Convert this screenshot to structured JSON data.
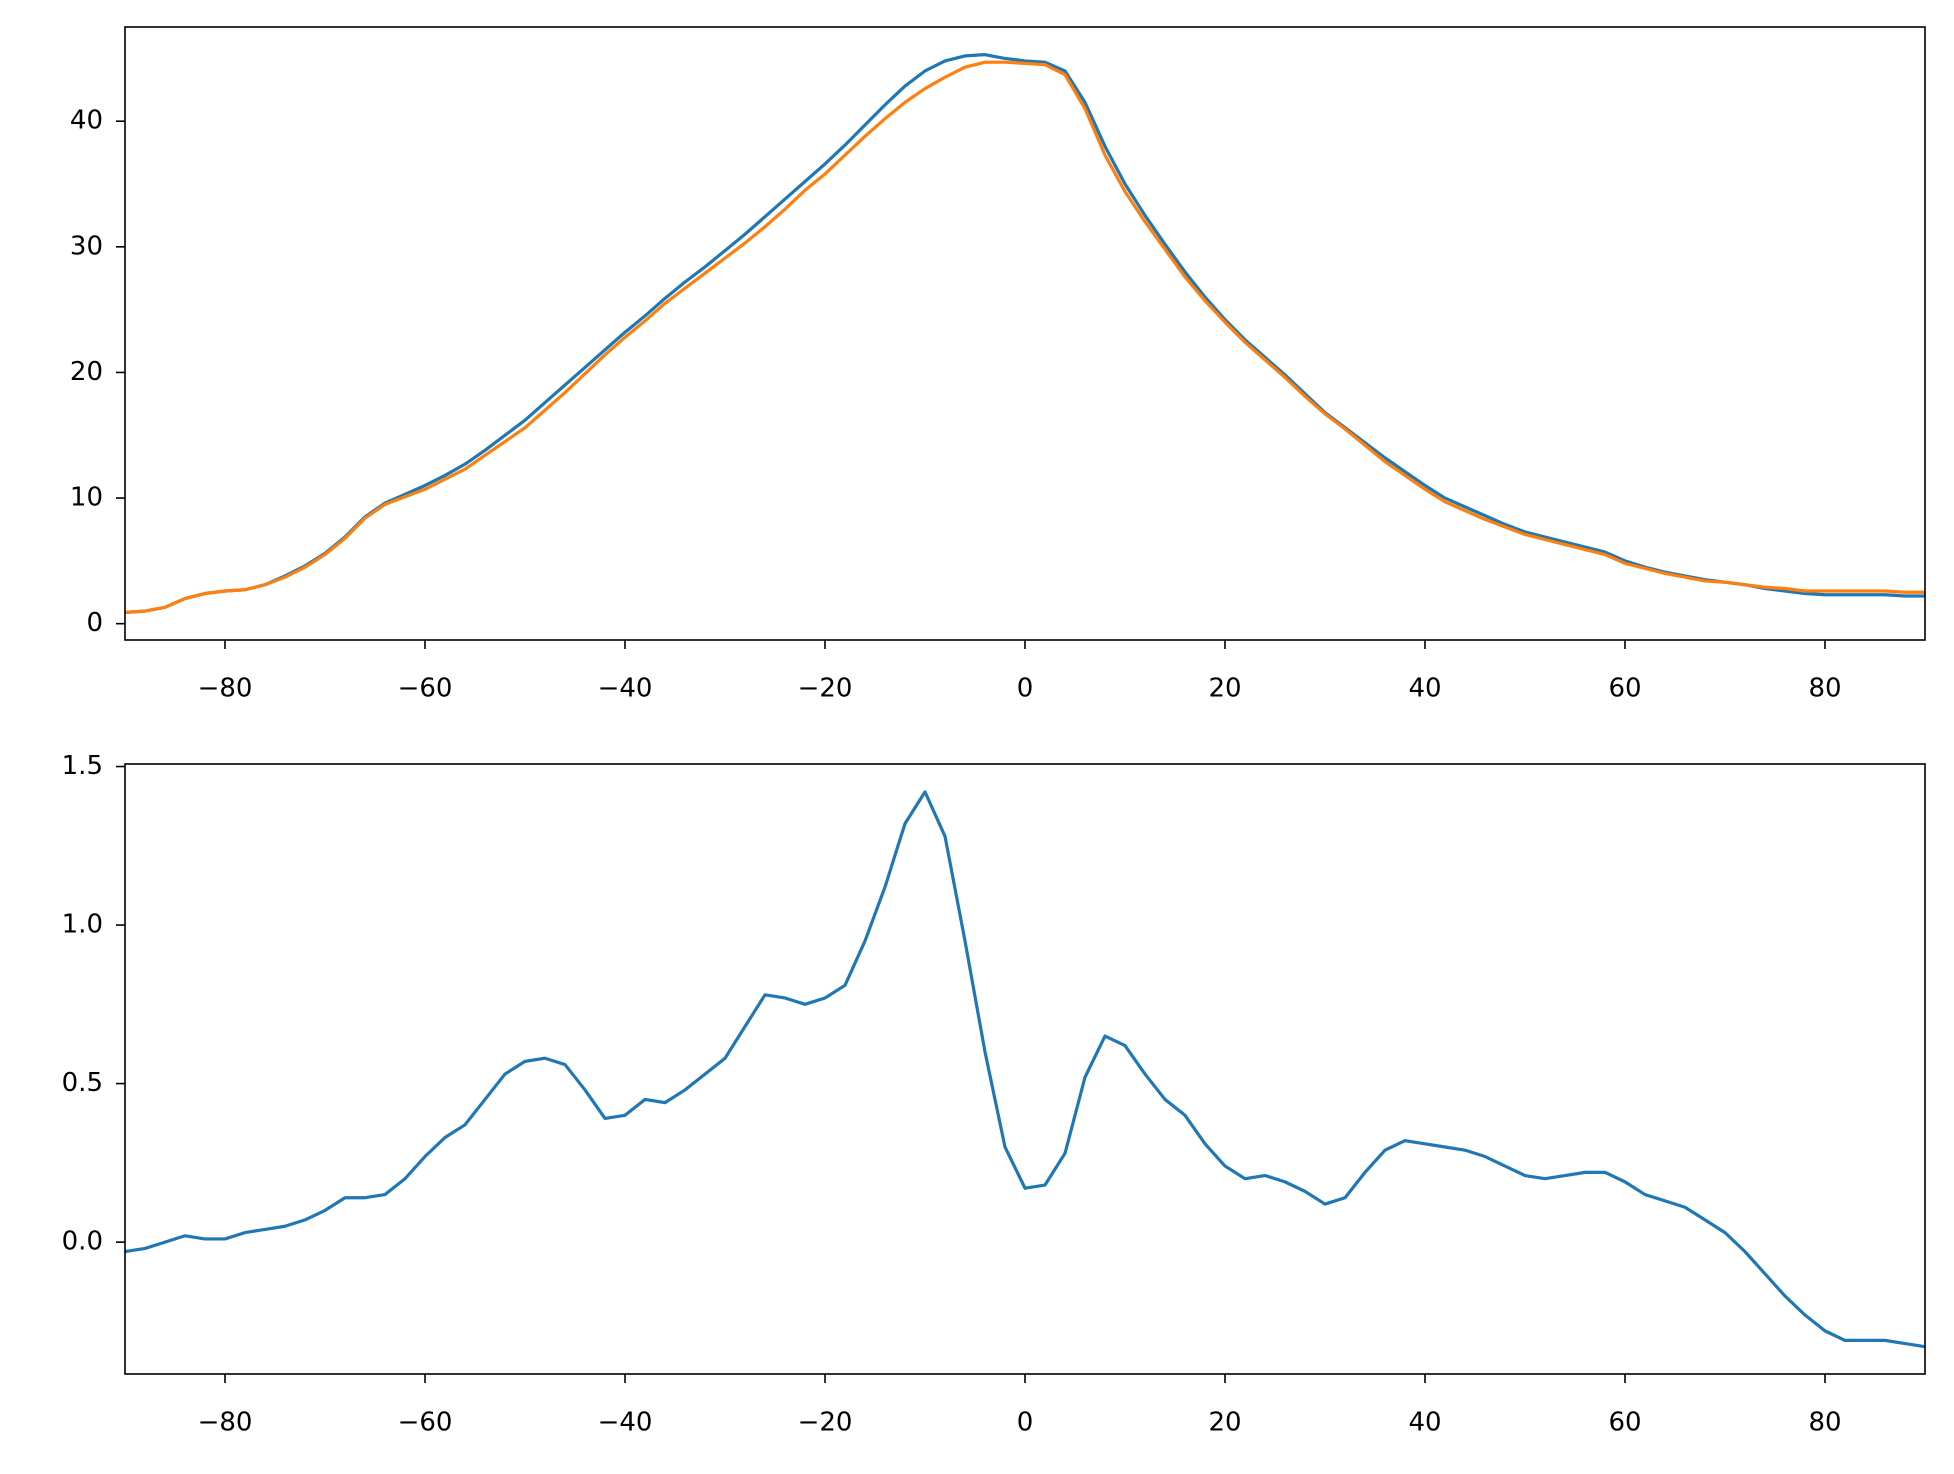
{
  "chart_data": [
    {
      "type": "line",
      "x": [
        -90,
        -88,
        -86,
        -84,
        -82,
        -80,
        -78,
        -76,
        -74,
        -72,
        -70,
        -68,
        -66,
        -64,
        -62,
        -60,
        -58,
        -56,
        -54,
        -52,
        -50,
        -48,
        -46,
        -44,
        -42,
        -40,
        -38,
        -36,
        -34,
        -32,
        -30,
        -28,
        -26,
        -24,
        -22,
        -20,
        -18,
        -16,
        -14,
        -12,
        -10,
        -8,
        -6,
        -4,
        -2,
        0,
        2,
        4,
        6,
        8,
        10,
        12,
        14,
        16,
        18,
        20,
        22,
        24,
        26,
        28,
        30,
        32,
        34,
        36,
        38,
        40,
        42,
        44,
        46,
        48,
        50,
        52,
        54,
        56,
        58,
        60,
        62,
        64,
        66,
        68,
        70,
        72,
        74,
        76,
        78,
        80,
        82,
        84,
        86,
        88,
        90
      ],
      "series": [
        {
          "color": "#1f77b4",
          "values": [
            0.9,
            1.0,
            1.3,
            2.0,
            2.4,
            2.6,
            2.7,
            3.1,
            3.8,
            4.6,
            5.6,
            6.9,
            8.5,
            9.6,
            10.3,
            11.0,
            11.8,
            12.7,
            13.8,
            15.0,
            16.2,
            17.6,
            19.0,
            20.4,
            21.8,
            23.2,
            24.5,
            25.9,
            27.2,
            28.4,
            29.7,
            31.0,
            32.4,
            33.8,
            35.2,
            36.6,
            38.1,
            39.7,
            41.3,
            42.8,
            44.0,
            44.8,
            45.2,
            45.3,
            45.0,
            44.8,
            44.7,
            44.0,
            41.5,
            38.0,
            35.0,
            32.5,
            30.2,
            28.0,
            26.0,
            24.2,
            22.6,
            21.2,
            19.8,
            18.3,
            16.8,
            15.6,
            14.4,
            13.2,
            12.1,
            11.0,
            10.0,
            9.3,
            8.6,
            7.9,
            7.3,
            6.9,
            6.5,
            6.1,
            5.7,
            5.0,
            4.5,
            4.1,
            3.8,
            3.5,
            3.3,
            3.1,
            2.8,
            2.6,
            2.4,
            2.3,
            2.3,
            2.3,
            2.3,
            2.2,
            2.2
          ]
        },
        {
          "color": "#ff7f0e",
          "values": [
            0.9,
            1.0,
            1.3,
            2.0,
            2.4,
            2.6,
            2.7,
            3.1,
            3.7,
            4.5,
            5.5,
            6.8,
            8.4,
            9.5,
            10.1,
            10.7,
            11.5,
            12.3,
            13.4,
            14.5,
            15.6,
            17.0,
            18.4,
            19.9,
            21.4,
            22.8,
            24.1,
            25.5,
            26.7,
            27.9,
            29.1,
            30.3,
            31.6,
            33.0,
            34.5,
            35.8,
            37.3,
            38.8,
            40.2,
            41.5,
            42.6,
            43.5,
            44.3,
            44.7,
            44.7,
            44.6,
            44.5,
            43.7,
            41.0,
            37.3,
            34.4,
            32.0,
            29.8,
            27.6,
            25.7,
            24.0,
            22.4,
            21.0,
            19.6,
            18.1,
            16.7,
            15.5,
            14.2,
            12.9,
            11.8,
            10.7,
            9.7,
            9.0,
            8.3,
            7.7,
            7.1,
            6.7,
            6.3,
            5.9,
            5.5,
            4.8,
            4.4,
            4.0,
            3.7,
            3.4,
            3.3,
            3.1,
            2.9,
            2.8,
            2.6,
            2.6,
            2.6,
            2.6,
            2.6,
            2.5,
            2.5
          ]
        }
      ],
      "xlim": [
        -90,
        90
      ],
      "ylim": [
        -1.3,
        47.5
      ],
      "xticks": [
        {
          "value": -80,
          "label": "−80"
        },
        {
          "value": -60,
          "label": "−60"
        },
        {
          "value": -40,
          "label": "−40"
        },
        {
          "value": -20,
          "label": "−20"
        },
        0,
        20,
        40,
        60,
        80
      ],
      "yticks": [
        0,
        10,
        20,
        30,
        40
      ]
    },
    {
      "type": "line",
      "x": [
        -90,
        -88,
        -86,
        -84,
        -82,
        -80,
        -78,
        -76,
        -74,
        -72,
        -70,
        -68,
        -66,
        -64,
        -62,
        -60,
        -58,
        -56,
        -54,
        -52,
        -50,
        -48,
        -46,
        -44,
        -42,
        -40,
        -38,
        -36,
        -34,
        -32,
        -30,
        -28,
        -26,
        -24,
        -22,
        -20,
        -18,
        -16,
        -14,
        -12,
        -10,
        -8,
        -6,
        -4,
        -2,
        0,
        2,
        4,
        6,
        8,
        10,
        12,
        14,
        16,
        18,
        20,
        22,
        24,
        26,
        28,
        30,
        32,
        34,
        36,
        38,
        40,
        42,
        44,
        46,
        48,
        50,
        52,
        54,
        56,
        58,
        60,
        62,
        64,
        66,
        68,
        70,
        72,
        74,
        76,
        78,
        80,
        82,
        84,
        86,
        88,
        90
      ],
      "series": [
        {
          "color": "#1f77b4",
          "values": [
            -0.03,
            -0.02,
            0.0,
            0.02,
            0.01,
            0.01,
            0.03,
            0.04,
            0.05,
            0.07,
            0.1,
            0.14,
            0.14,
            0.15,
            0.2,
            0.27,
            0.33,
            0.37,
            0.45,
            0.53,
            0.57,
            0.58,
            0.56,
            0.48,
            0.39,
            0.4,
            0.45,
            0.44,
            0.48,
            0.53,
            0.58,
            0.68,
            0.78,
            0.77,
            0.75,
            0.77,
            0.81,
            0.95,
            1.12,
            1.32,
            1.42,
            1.28,
            0.95,
            0.6,
            0.3,
            0.17,
            0.18,
            0.28,
            0.52,
            0.65,
            0.62,
            0.53,
            0.45,
            0.4,
            0.31,
            0.24,
            0.2,
            0.21,
            0.19,
            0.16,
            0.12,
            0.14,
            0.22,
            0.29,
            0.32,
            0.31,
            0.3,
            0.29,
            0.27,
            0.24,
            0.21,
            0.2,
            0.21,
            0.22,
            0.22,
            0.19,
            0.15,
            0.13,
            0.11,
            0.07,
            0.03,
            -0.03,
            -0.1,
            -0.17,
            -0.23,
            -0.28,
            -0.31,
            -0.31,
            -0.31,
            -0.32,
            -0.33
          ]
        }
      ],
      "xlim": [
        -90,
        90
      ],
      "ylim": [
        -0.416,
        1.508
      ],
      "xticks": [
        {
          "value": -80,
          "label": "−80"
        },
        {
          "value": -60,
          "label": "−60"
        },
        {
          "value": -40,
          "label": "−40"
        },
        {
          "value": -20,
          "label": "−20"
        },
        0,
        20,
        40,
        60,
        80
      ],
      "yticks": [
        {
          "value": 0,
          "label": "0.0"
        },
        0.5,
        {
          "value": 1,
          "label": "1.0"
        },
        1.5
      ]
    }
  ]
}
